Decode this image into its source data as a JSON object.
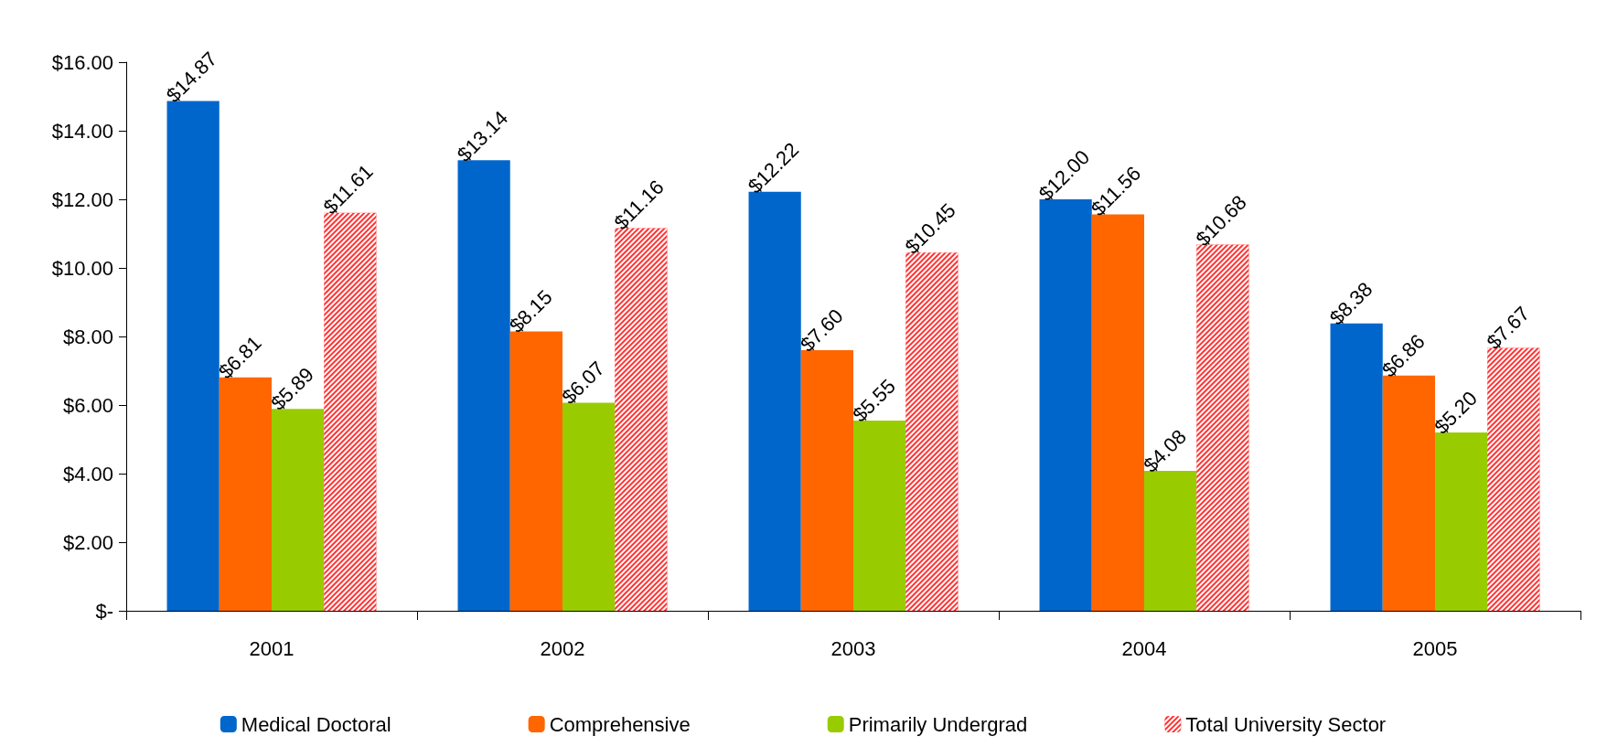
{
  "chart_data": {
    "type": "bar",
    "categories": [
      "2001",
      "2002",
      "2003",
      "2004",
      "2005"
    ],
    "series": [
      {
        "name": "Medical Doctoral",
        "color": "#0066cc",
        "values": [
          14.87,
          13.14,
          12.22,
          12.0,
          8.38
        ],
        "value_labels": [
          "$14.87",
          "$13.14",
          "$12.22",
          "$12.00",
          "$8.38"
        ]
      },
      {
        "name": "Comprehensive",
        "color": "#ff6600",
        "values": [
          6.81,
          8.15,
          7.6,
          11.56,
          6.86
        ],
        "value_labels": [
          "$6.81",
          "$8.15",
          "$7.60",
          "$11.56",
          "$6.86"
        ]
      },
      {
        "name": "Primarily Undergrad",
        "color": "#99cc00",
        "values": [
          5.89,
          6.07,
          5.55,
          4.08,
          5.2
        ],
        "value_labels": [
          "$5.89",
          "$6.07",
          "$5.55",
          "$4.08",
          "$5.20"
        ]
      },
      {
        "name": "Total University Sector",
        "color": "#ff3333",
        "values": [
          11.61,
          11.16,
          10.45,
          10.68,
          7.67
        ],
        "value_labels": [
          "$11.61",
          "$11.16",
          "$10.45",
          "$10.68",
          "$7.67"
        ]
      }
    ],
    "ylim": [
      0,
      16
    ],
    "yticks": [
      {
        "value": 0,
        "label": "$-"
      },
      {
        "value": 2,
        "label": "$2.00"
      },
      {
        "value": 4,
        "label": "$4.00"
      },
      {
        "value": 6,
        "label": "$6.00"
      },
      {
        "value": 8,
        "label": "$8.00"
      },
      {
        "value": 10,
        "label": "$10.00"
      },
      {
        "value": 12,
        "label": "$12.00"
      },
      {
        "value": 14,
        "label": "$14.00"
      },
      {
        "value": 16,
        "label": "$16.00"
      }
    ],
    "grid": false,
    "legend": "bottom"
  }
}
